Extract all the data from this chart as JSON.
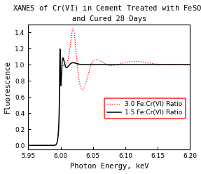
{
  "title_line1": "XANES of Cr(VI) in Cement Treated with FeSO",
  "title_sub": "4",
  "title_line2": "and Cured 28 Days",
  "xlabel": "Photon Energy, keV",
  "ylabel": "Fluorescence",
  "xlim": [
    5.95,
    6.2
  ],
  "ylim": [
    -0.05,
    1.5
  ],
  "xticks": [
    5.95,
    6.0,
    6.05,
    6.1,
    6.15,
    6.2
  ],
  "yticks": [
    0.0,
    0.2,
    0.4,
    0.6,
    0.8,
    1.0,
    1.2,
    1.4
  ],
  "legend_label_1": "1.5 Fe:Cr(VI) Ratio",
  "legend_label_2": "3.0 Fe:Cr(VI) Ratio",
  "line1_color": "#000000",
  "line2_color": "#ff0000",
  "legend_edgecolor": "#ff0000",
  "background": "#ffffff",
  "title_fontsize": 7.5,
  "axis_fontsize": 7.5,
  "tick_fontsize": 6.5,
  "legend_fontsize": 6.5
}
